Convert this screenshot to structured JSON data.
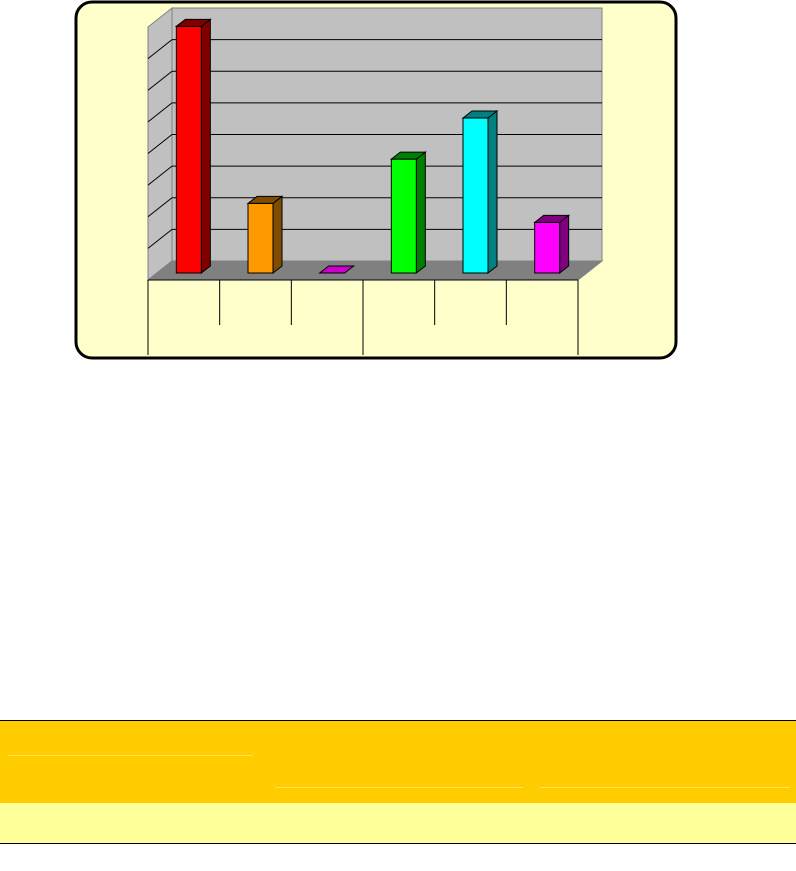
{
  "chart_data": {
    "type": "bar",
    "style": "3d-column",
    "title": "",
    "xlabel": "",
    "ylabel": "",
    "categories": [
      "",
      "",
      "",
      "",
      "",
      ""
    ],
    "category_groups": 2,
    "values": [
      7.8,
      2.2,
      0,
      3.6,
      4.9,
      1.6
    ],
    "ylim": [
      0,
      8
    ],
    "grid": true,
    "legend": "none",
    "colors": [
      "#ff0000",
      "#ff9900",
      "#cc00cc",
      "#00ff00",
      "#00ffff",
      "#ff00ff"
    ],
    "side_colors": [
      "#800000",
      "#804c00",
      "#800080",
      "#008000",
      "#008080",
      "#800080"
    ],
    "background": "#ffffcc",
    "wall_color": "#c0c0c0",
    "floor_color": "#808080"
  },
  "table": {
    "header_color": "#ffcc00",
    "row_color": "#ffff99"
  }
}
